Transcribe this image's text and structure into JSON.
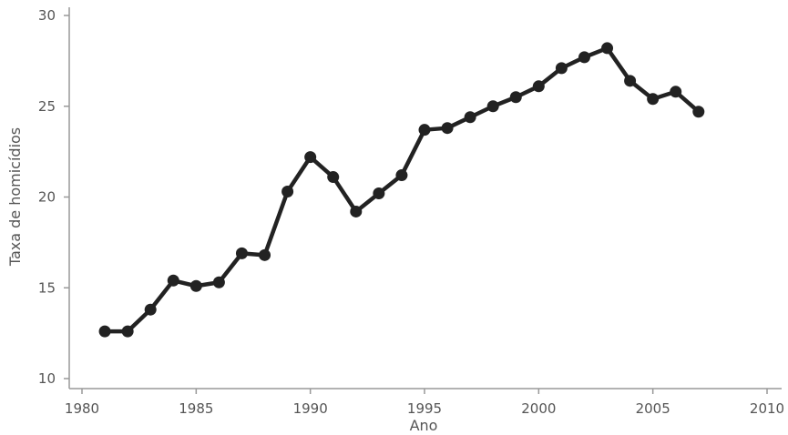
{
  "chart_data": {
    "type": "line",
    "title": "",
    "xlabel": "Ano",
    "ylabel": "Taxa de homicídios",
    "xlim": [
      1980,
      2010
    ],
    "ylim": [
      10,
      30
    ],
    "x_ticks": [
      1980,
      1985,
      1990,
      1995,
      2000,
      2005,
      2010
    ],
    "y_ticks": [
      10,
      15,
      20,
      25,
      30
    ],
    "grid": false,
    "legend": "none",
    "colors": {
      "series": "#222222",
      "axis": "#999999",
      "text": "#555555"
    },
    "x": [
      1981,
      1982,
      1983,
      1984,
      1985,
      1986,
      1987,
      1988,
      1989,
      1990,
      1991,
      1992,
      1993,
      1994,
      1995,
      1996,
      1997,
      1998,
      1999,
      2000,
      2001,
      2002,
      2003,
      2004,
      2005,
      2006,
      2007
    ],
    "series": [
      {
        "values": [
          12.6,
          12.6,
          13.8,
          15.4,
          15.1,
          15.3,
          16.9,
          16.8,
          20.3,
          22.2,
          21.1,
          19.2,
          20.2,
          21.2,
          23.7,
          23.8,
          24.4,
          25.0,
          25.5,
          26.1,
          27.1,
          27.7,
          28.2,
          26.4,
          25.4,
          25.8,
          24.7
        ]
      }
    ]
  }
}
